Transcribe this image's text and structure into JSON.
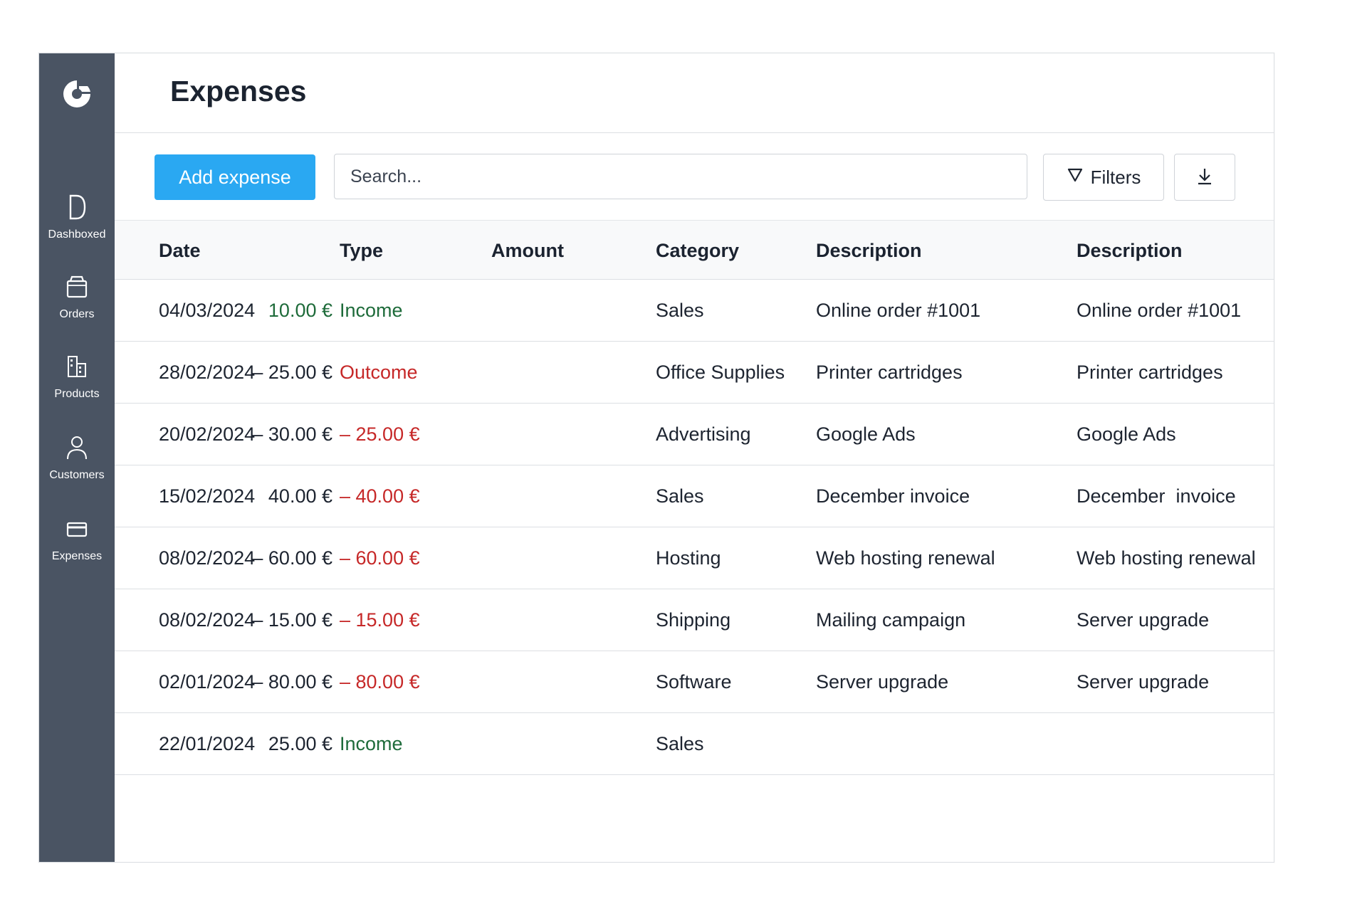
{
  "sidebar": {
    "items": [
      {
        "label": "Dashboxed",
        "icon": "dashboard-icon"
      },
      {
        "label": "Orders",
        "icon": "orders-icon"
      },
      {
        "label": "Products",
        "icon": "products-icon"
      },
      {
        "label": "Customers",
        "icon": "customers-icon"
      },
      {
        "label": "Expenses",
        "icon": "expenses-icon"
      }
    ]
  },
  "page": {
    "title": "Expenses"
  },
  "toolbar": {
    "add_label": "Add expense",
    "search_placeholder": "Search...",
    "filters_label": "Filters",
    "download_icon": "download-icon"
  },
  "table": {
    "headers": [
      "Date",
      "Type",
      "Amount",
      "Category",
      "Description",
      "Description"
    ],
    "rows": [
      {
        "date": "04/03/2024",
        "type": "Income",
        "type_color": "#1e6b3a",
        "amount": "10.00 €",
        "amount_color": "#1e6b3a",
        "category": "Sales",
        "desc1": "Online order #1001",
        "desc2": "Online order #1001"
      },
      {
        "date": "28/02/2024",
        "type": "Outcome",
        "type_color": "#c62828",
        "amount": "– 25.00 €",
        "amount_color": "#1d2430",
        "category": "Office Supplies",
        "desc1": "Printer cartridges",
        "desc2": "Printer cartridges"
      },
      {
        "date": "20/02/2024",
        "type": "– 25.00 €",
        "type_color": "#c62828",
        "amount": "– 30.00 €",
        "amount_color": "#1d2430",
        "category": "Advertising",
        "desc1": "Google Ads",
        "desc2": "Google Ads"
      },
      {
        "date": "15/02/2024",
        "type": "– 40.00 €",
        "type_color": "#c62828",
        "amount": "40.00 €",
        "amount_color": "#1d2430",
        "category": "Sales",
        "desc1": "December invoice",
        "desc2": "December  invoice"
      },
      {
        "date": "08/02/2024",
        "type": "– 60.00 €",
        "type_color": "#c62828",
        "amount": "– 60.00 €",
        "amount_color": "#1d2430",
        "category": "Hosting",
        "desc1": "Web hosting renewal",
        "desc2": "Web hosting renewal"
      },
      {
        "date": "08/02/2024",
        "type": "– 15.00 €",
        "type_color": "#c62828",
        "amount": "– 15.00 €",
        "amount_color": "#1d2430",
        "category": "Shipping",
        "desc1": "Mailing campaign",
        "desc2": "Server upgrade"
      },
      {
        "date": "02/01/2024",
        "type": "– 80.00 €",
        "type_color": "#c62828",
        "amount": "– 80.00 €",
        "amount_color": "#1d2430",
        "category": "Software",
        "desc1": "Server upgrade",
        "desc2": "Server upgrade"
      },
      {
        "date": "22/01/2024",
        "type": "Income",
        "type_color": "#1e6b3a",
        "amount": "25.00 €",
        "amount_color": "#1d2430",
        "category": "Sales",
        "desc1": "",
        "desc2": ""
      }
    ]
  },
  "colors": {
    "sidebar_bg": "#4a5463",
    "accent": "#2aa8f2",
    "income": "#1e6b3a",
    "outcome": "#c62828"
  }
}
